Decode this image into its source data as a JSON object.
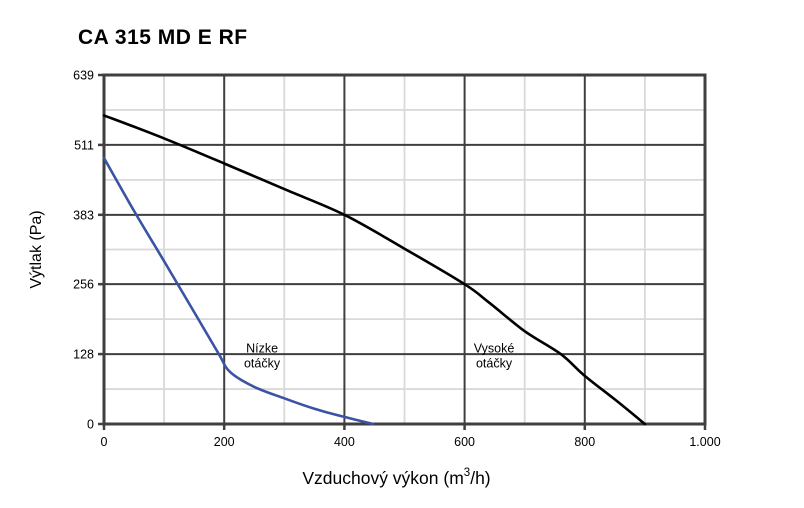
{
  "page": {
    "title": "CA 315 MD E RF"
  },
  "chart_data": {
    "type": "line",
    "title": "CA 315 MD E RF",
    "xlabel": "Vzduchový výkon (m³/h)",
    "xlabel_parts": {
      "pre": "Vzduchový výkon (m",
      "sup": "3",
      "post": "/h)"
    },
    "ylabel": "Výtlak (Pa)",
    "xlim": [
      0,
      1000
    ],
    "ylim": [
      0,
      639
    ],
    "grid": true,
    "legend_position": "inline-annotations",
    "x_ticks": [
      {
        "v": 0,
        "label": "0"
      },
      {
        "v": 200,
        "label": "200"
      },
      {
        "v": 400,
        "label": "400"
      },
      {
        "v": 600,
        "label": "600"
      },
      {
        "v": 800,
        "label": "800"
      },
      {
        "v": 1000,
        "label": "1.000"
      }
    ],
    "y_ticks": [
      {
        "v": 0,
        "label": "0"
      },
      {
        "v": 128,
        "label": "128"
      },
      {
        "v": 256,
        "label": "256"
      },
      {
        "v": 383,
        "label": "383"
      },
      {
        "v": 511,
        "label": "511"
      },
      {
        "v": 639,
        "label": "639"
      }
    ],
    "x_minor": [
      100,
      300,
      500,
      700,
      900
    ],
    "y_minor": [
      64,
      192,
      319.5,
      447,
      575
    ],
    "style": {
      "axis_color": "#3f3f3f",
      "minor_grid_color": "#d9d9d9",
      "text_color": "#000000",
      "background": "#ffffff",
      "high_speed_color": "#000000",
      "low_speed_color": "#3a53a4"
    },
    "series": [
      {
        "name": "Vysoké otáčky",
        "id": "vysoke-otacky",
        "color": "#000000",
        "points": [
          [
            0,
            565
          ],
          [
            100,
            523
          ],
          [
            200,
            477
          ],
          [
            300,
            430
          ],
          [
            400,
            383
          ],
          [
            500,
            321
          ],
          [
            600,
            256
          ],
          [
            640,
            223
          ],
          [
            700,
            170
          ],
          [
            760,
            128
          ],
          [
            800,
            88
          ],
          [
            850,
            45
          ],
          [
            900,
            0
          ]
        ]
      },
      {
        "name": "Nízke otáčky",
        "id": "nizke-otacky",
        "color": "#3a53a4",
        "points": [
          [
            0,
            487
          ],
          [
            50,
            390
          ],
          [
            100,
            298
          ],
          [
            150,
            205
          ],
          [
            190,
            130
          ],
          [
            210,
            95
          ],
          [
            250,
            68
          ],
          [
            300,
            47
          ],
          [
            350,
            28
          ],
          [
            400,
            13
          ],
          [
            448,
            0
          ]
        ]
      }
    ],
    "annotations": [
      {
        "lines": [
          "Nízke",
          "otáčky"
        ],
        "x": 263,
        "y": 124,
        "series": "nizke-otacky"
      },
      {
        "lines": [
          "Vysoké",
          "otáčky"
        ],
        "x": 649,
        "y": 124,
        "series": "vysoke-otacky"
      }
    ]
  }
}
